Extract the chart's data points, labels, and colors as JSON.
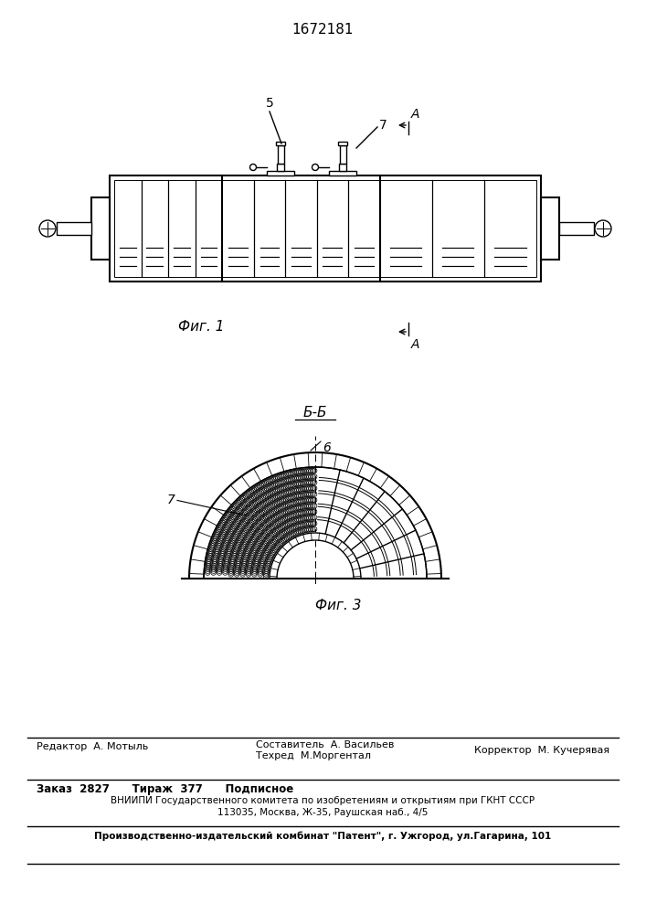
{
  "title_patent": "1672181",
  "fig1_label": "Фиг. 1",
  "fig3_label": "Фиг. 3",
  "section_label_BB": "Б-Б",
  "label_5": "5",
  "label_6": "6",
  "label_7_fig1": "7",
  "label_7_fig3": "7",
  "label_A": "A",
  "line_color": "#000000",
  "bg_color": "#ffffff",
  "footer_r1_left": "Редактор  А. Мотыль",
  "footer_r1_ctop": "Составитель  А. Васильев",
  "footer_r1_cbot": "Техред  М.Моргентал",
  "footer_r1_right": "Корректор  М. Кучерявая",
  "footer_r2": "Заказ  2827      Тираж  377      Подписное",
  "footer_r3": "ВНИИПИ Государственного комитета по изобретениям и открытиям при ГКНТ СССР",
  "footer_r4": "113035, Москва, Ж-35, Раушская наб., 4/5",
  "footer_r5": "Производственно-издательский комбинат \"Патент\", г. Ужгород, ул.Гагарина, 101"
}
